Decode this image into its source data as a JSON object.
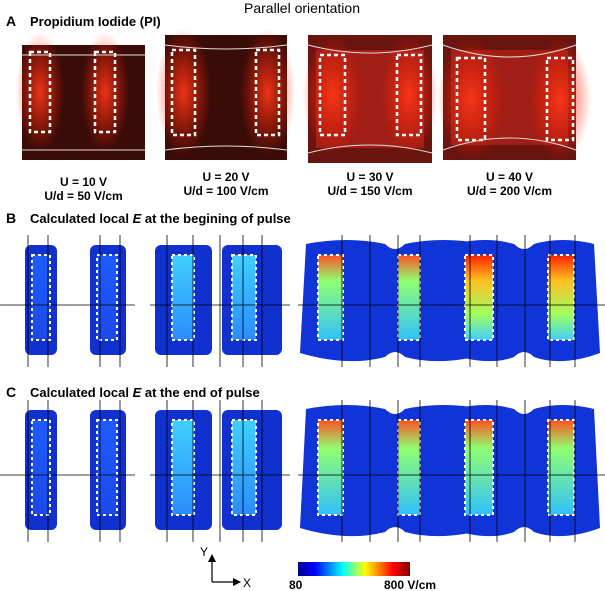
{
  "title": "Parallel orientation",
  "panel_a": {
    "letter": "A",
    "title": "Propidium Iodide (PI)",
    "conditions": [
      {
        "voltage": "U = 10 V",
        "field": "U/d = 50 V/cm"
      },
      {
        "voltage": "U = 20 V",
        "field": "U/d = 100 V/cm"
      },
      {
        "voltage": "U = 30 V",
        "field": "U/d = 150 V/cm"
      },
      {
        "voltage": "U = 40 V",
        "field": "U/d = 200 V/cm"
      }
    ]
  },
  "panel_b": {
    "letter": "B",
    "title": [
      "Calculated local ",
      "E",
      " at the begining of pulse"
    ]
  },
  "panel_c": {
    "letter": "C",
    "title": [
      "Calculated local ",
      "E",
      " at the end of pulse"
    ]
  },
  "axes": {
    "y": "Y",
    "x": "X"
  },
  "colorbar": {
    "min": "80",
    "max": "800 V/cm"
  }
}
